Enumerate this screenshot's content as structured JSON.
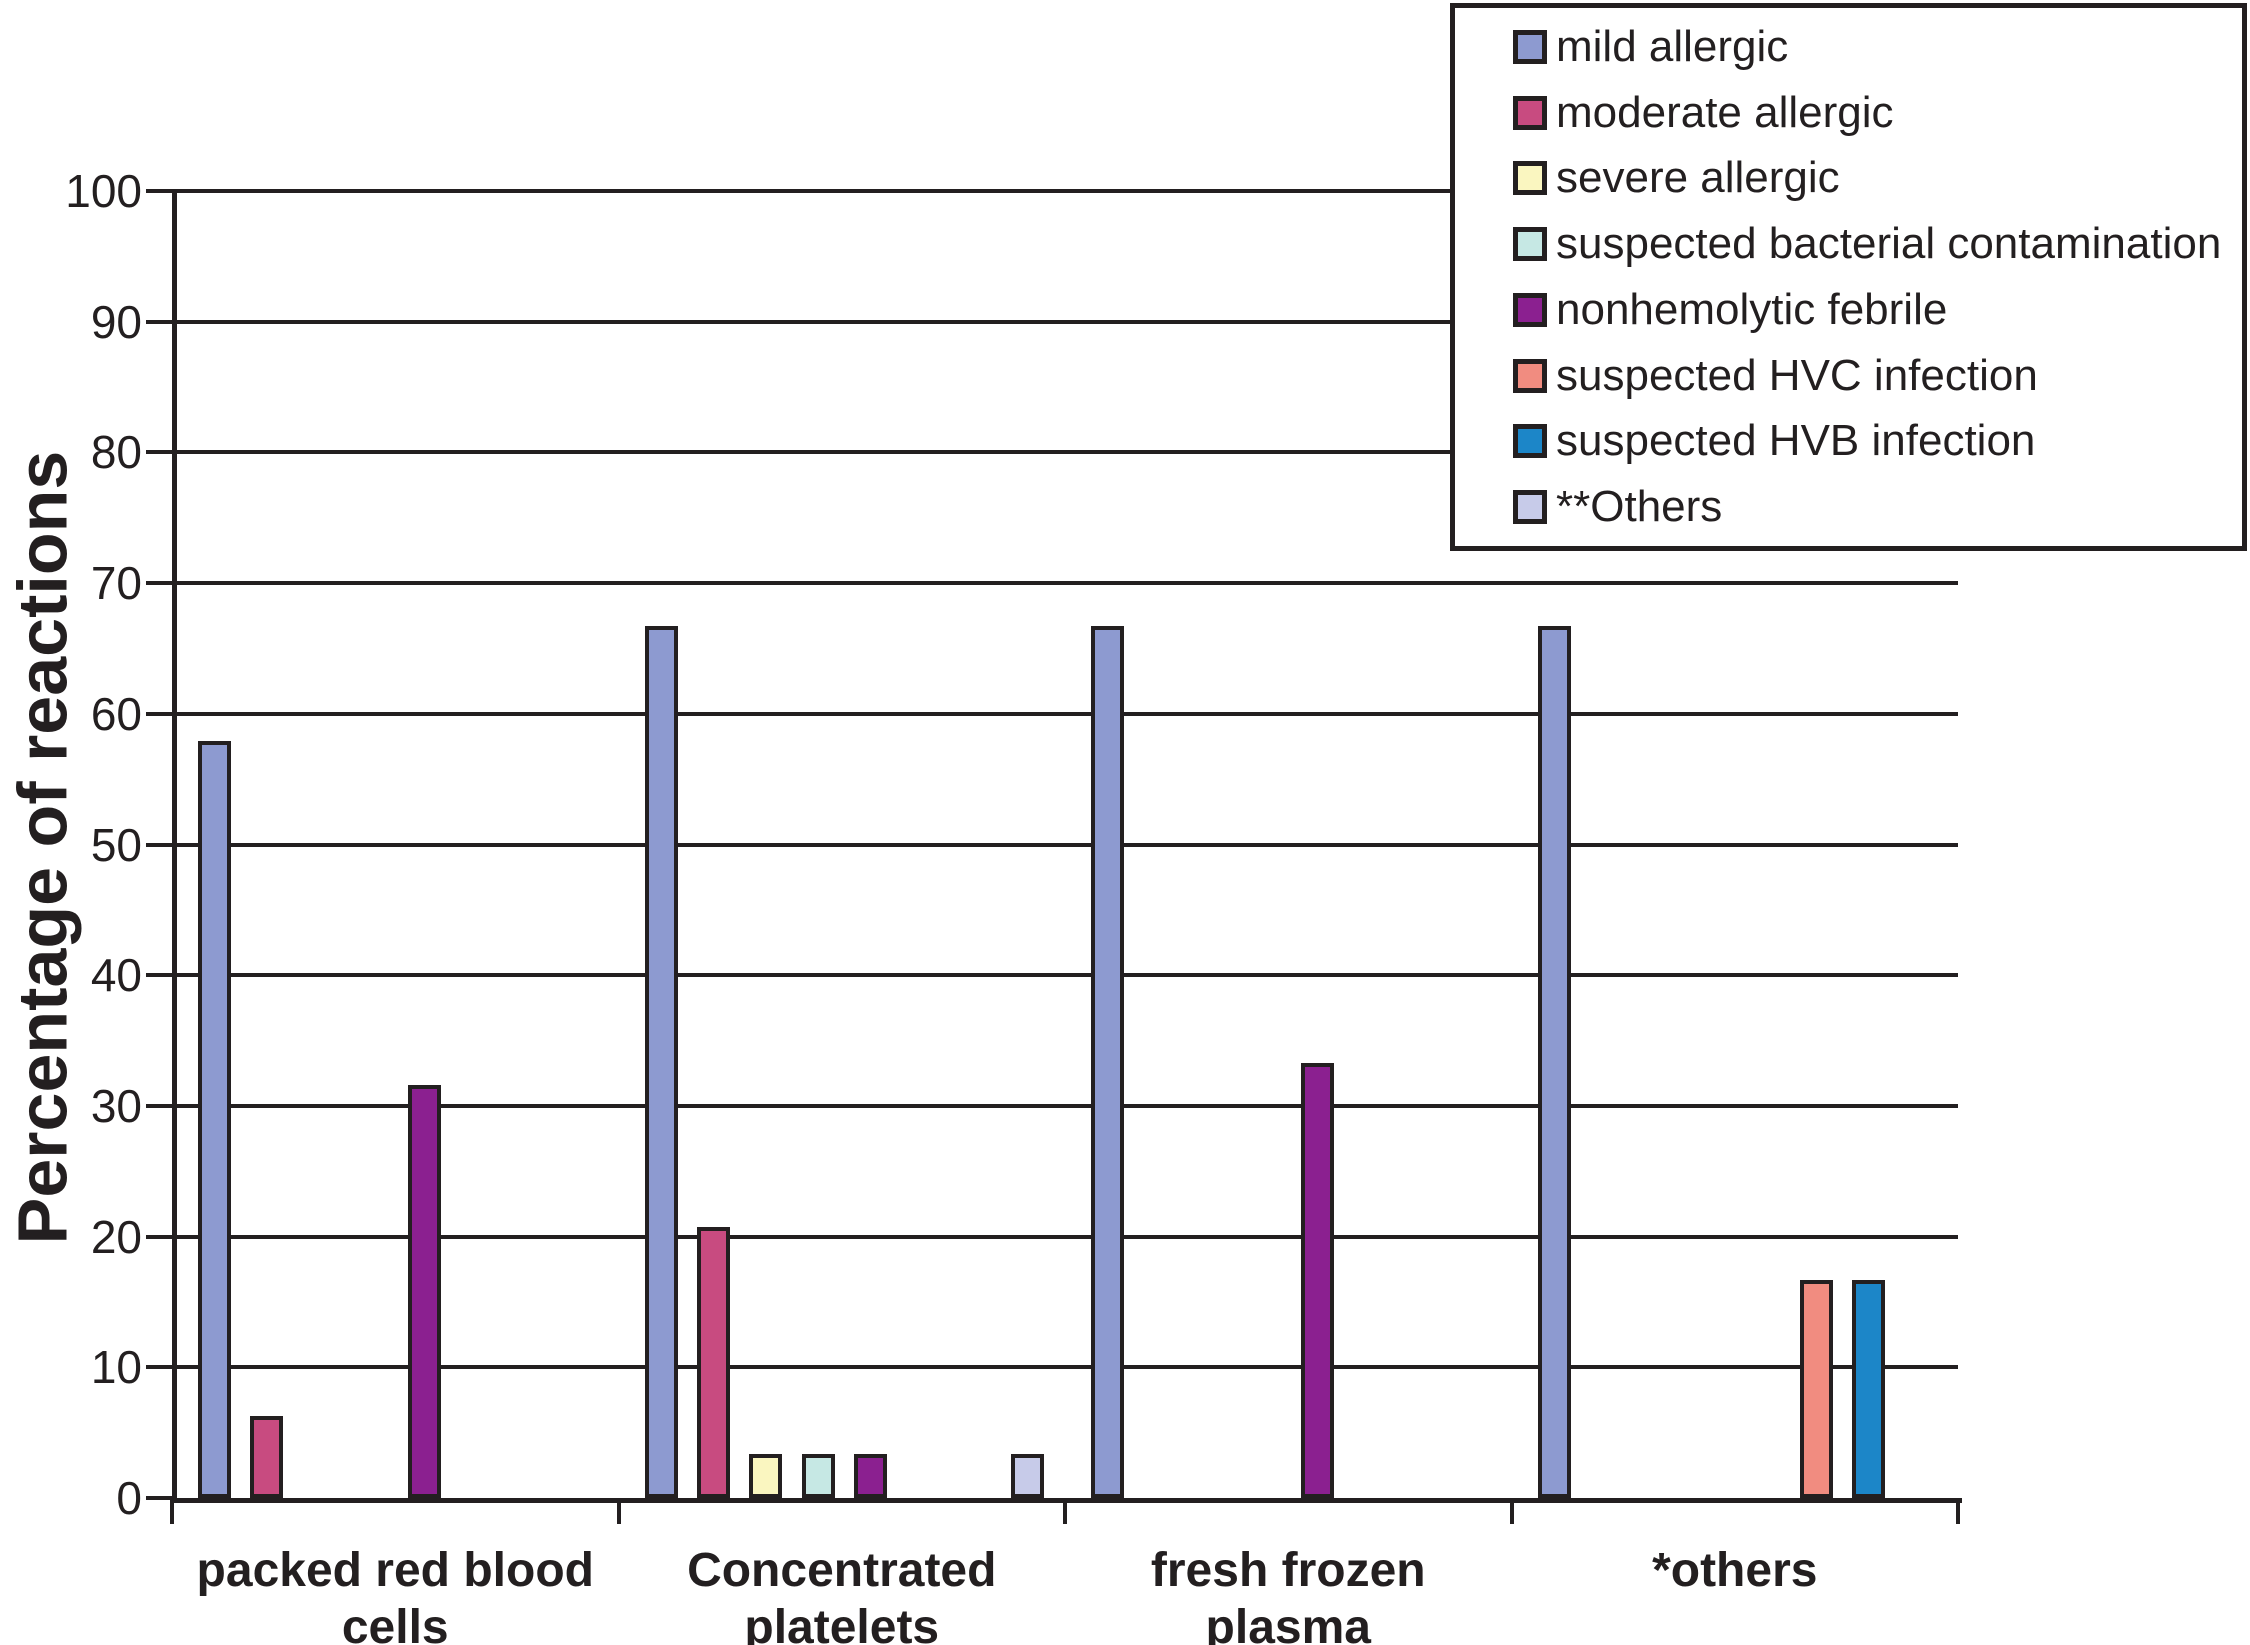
{
  "figure": {
    "kind": "static-bar-chart-figure",
    "background_color": "#ffffff",
    "line_color": "#231f20"
  },
  "chart_data": {
    "type": "bar",
    "title": "",
    "xlabel": "",
    "ylabel": "Percentage of reactions",
    "ylim": [
      0,
      100
    ],
    "yticks": [
      0,
      10,
      20,
      30,
      40,
      50,
      60,
      70,
      80,
      90,
      100
    ],
    "grid": true,
    "legend_position": "top-right-overlay",
    "categories": [
      "packed red blood cells",
      "Concentrated platelets",
      "fresh frozen plasma",
      "*others"
    ],
    "category_label_lines": [
      [
        "packed red blood",
        "cells"
      ],
      [
        "Concentrated",
        "platelets"
      ],
      [
        "fresh frozen",
        "plasma"
      ],
      [
        "*others"
      ]
    ],
    "series": [
      {
        "name": "mild allergic",
        "color": "#8d9ad0",
        "values": [
          57.9,
          66.7,
          66.7,
          66.7
        ]
      },
      {
        "name": "moderate allergic",
        "color": "#c84b80",
        "values": [
          6.3,
          20.7,
          0,
          0
        ]
      },
      {
        "name": "severe allergic",
        "color": "#faf6c0",
        "values": [
          0,
          3.4,
          0,
          0
        ]
      },
      {
        "name": "suspected bacterial contamination",
        "color": "#c6e8e4",
        "values": [
          0,
          3.4,
          0,
          0
        ]
      },
      {
        "name": "nonhemolytic febrile",
        "color": "#8b2090",
        "values": [
          31.6,
          3.4,
          33.3,
          0
        ]
      },
      {
        "name": "suspected HVC infection",
        "color": "#f18c80",
        "values": [
          0,
          0,
          0,
          16.7
        ]
      },
      {
        "name": "suspected HVB infection",
        "color": "#1c86c8",
        "values": [
          0,
          0,
          0,
          16.7
        ]
      },
      {
        "name": "**Others",
        "color": "#c7cbe9",
        "values": [
          0,
          3.4,
          0,
          0
        ]
      }
    ]
  }
}
